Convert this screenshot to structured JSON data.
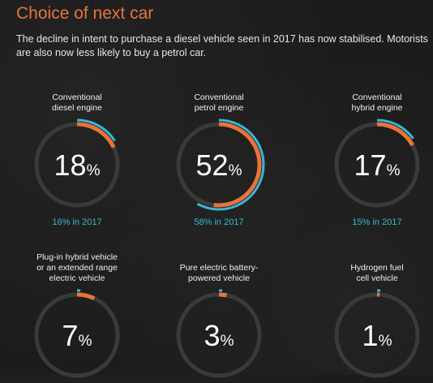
{
  "header": {
    "title": "Choice of next car",
    "subtitle": "The decline in intent to purchase a diesel vehicle seen in 2017 has now stabilised. Motorists are also now less likely to buy a petrol car."
  },
  "colors": {
    "accent_orange": "#e8743b",
    "accent_blue": "#3bb7d4",
    "track": "#3a3a3a",
    "background": "#1c1c1c"
  },
  "chart_data": {
    "type": "gauge",
    "unit": "%",
    "items": [
      {
        "label": "Conventional\ndiesel engine",
        "value": 18,
        "value_text": "18",
        "prior_value": 16,
        "prior_text": "16% in 2017"
      },
      {
        "label": "Conventional\npetrol engine",
        "value": 52,
        "value_text": "52",
        "prior_value": 58,
        "prior_text": "58% in 2017"
      },
      {
        "label": "Conventional\nhybrid engine",
        "value": 17,
        "value_text": "17",
        "prior_value": 15,
        "prior_text": "15% in 2017"
      },
      {
        "label": "Plug-in hybrid vehicle\nor an extended range\nelectric vehicle",
        "value": 7,
        "value_text": "7",
        "prior_value": null,
        "prior_text": ""
      },
      {
        "label": "Pure electric battery-\npowered vehicle",
        "value": 3,
        "value_text": "3",
        "prior_value": null,
        "prior_text": ""
      },
      {
        "label": "Hydrogen fuel\ncell vehicle",
        "value": 1,
        "value_text": "1",
        "prior_value": null,
        "prior_text": ""
      }
    ]
  }
}
